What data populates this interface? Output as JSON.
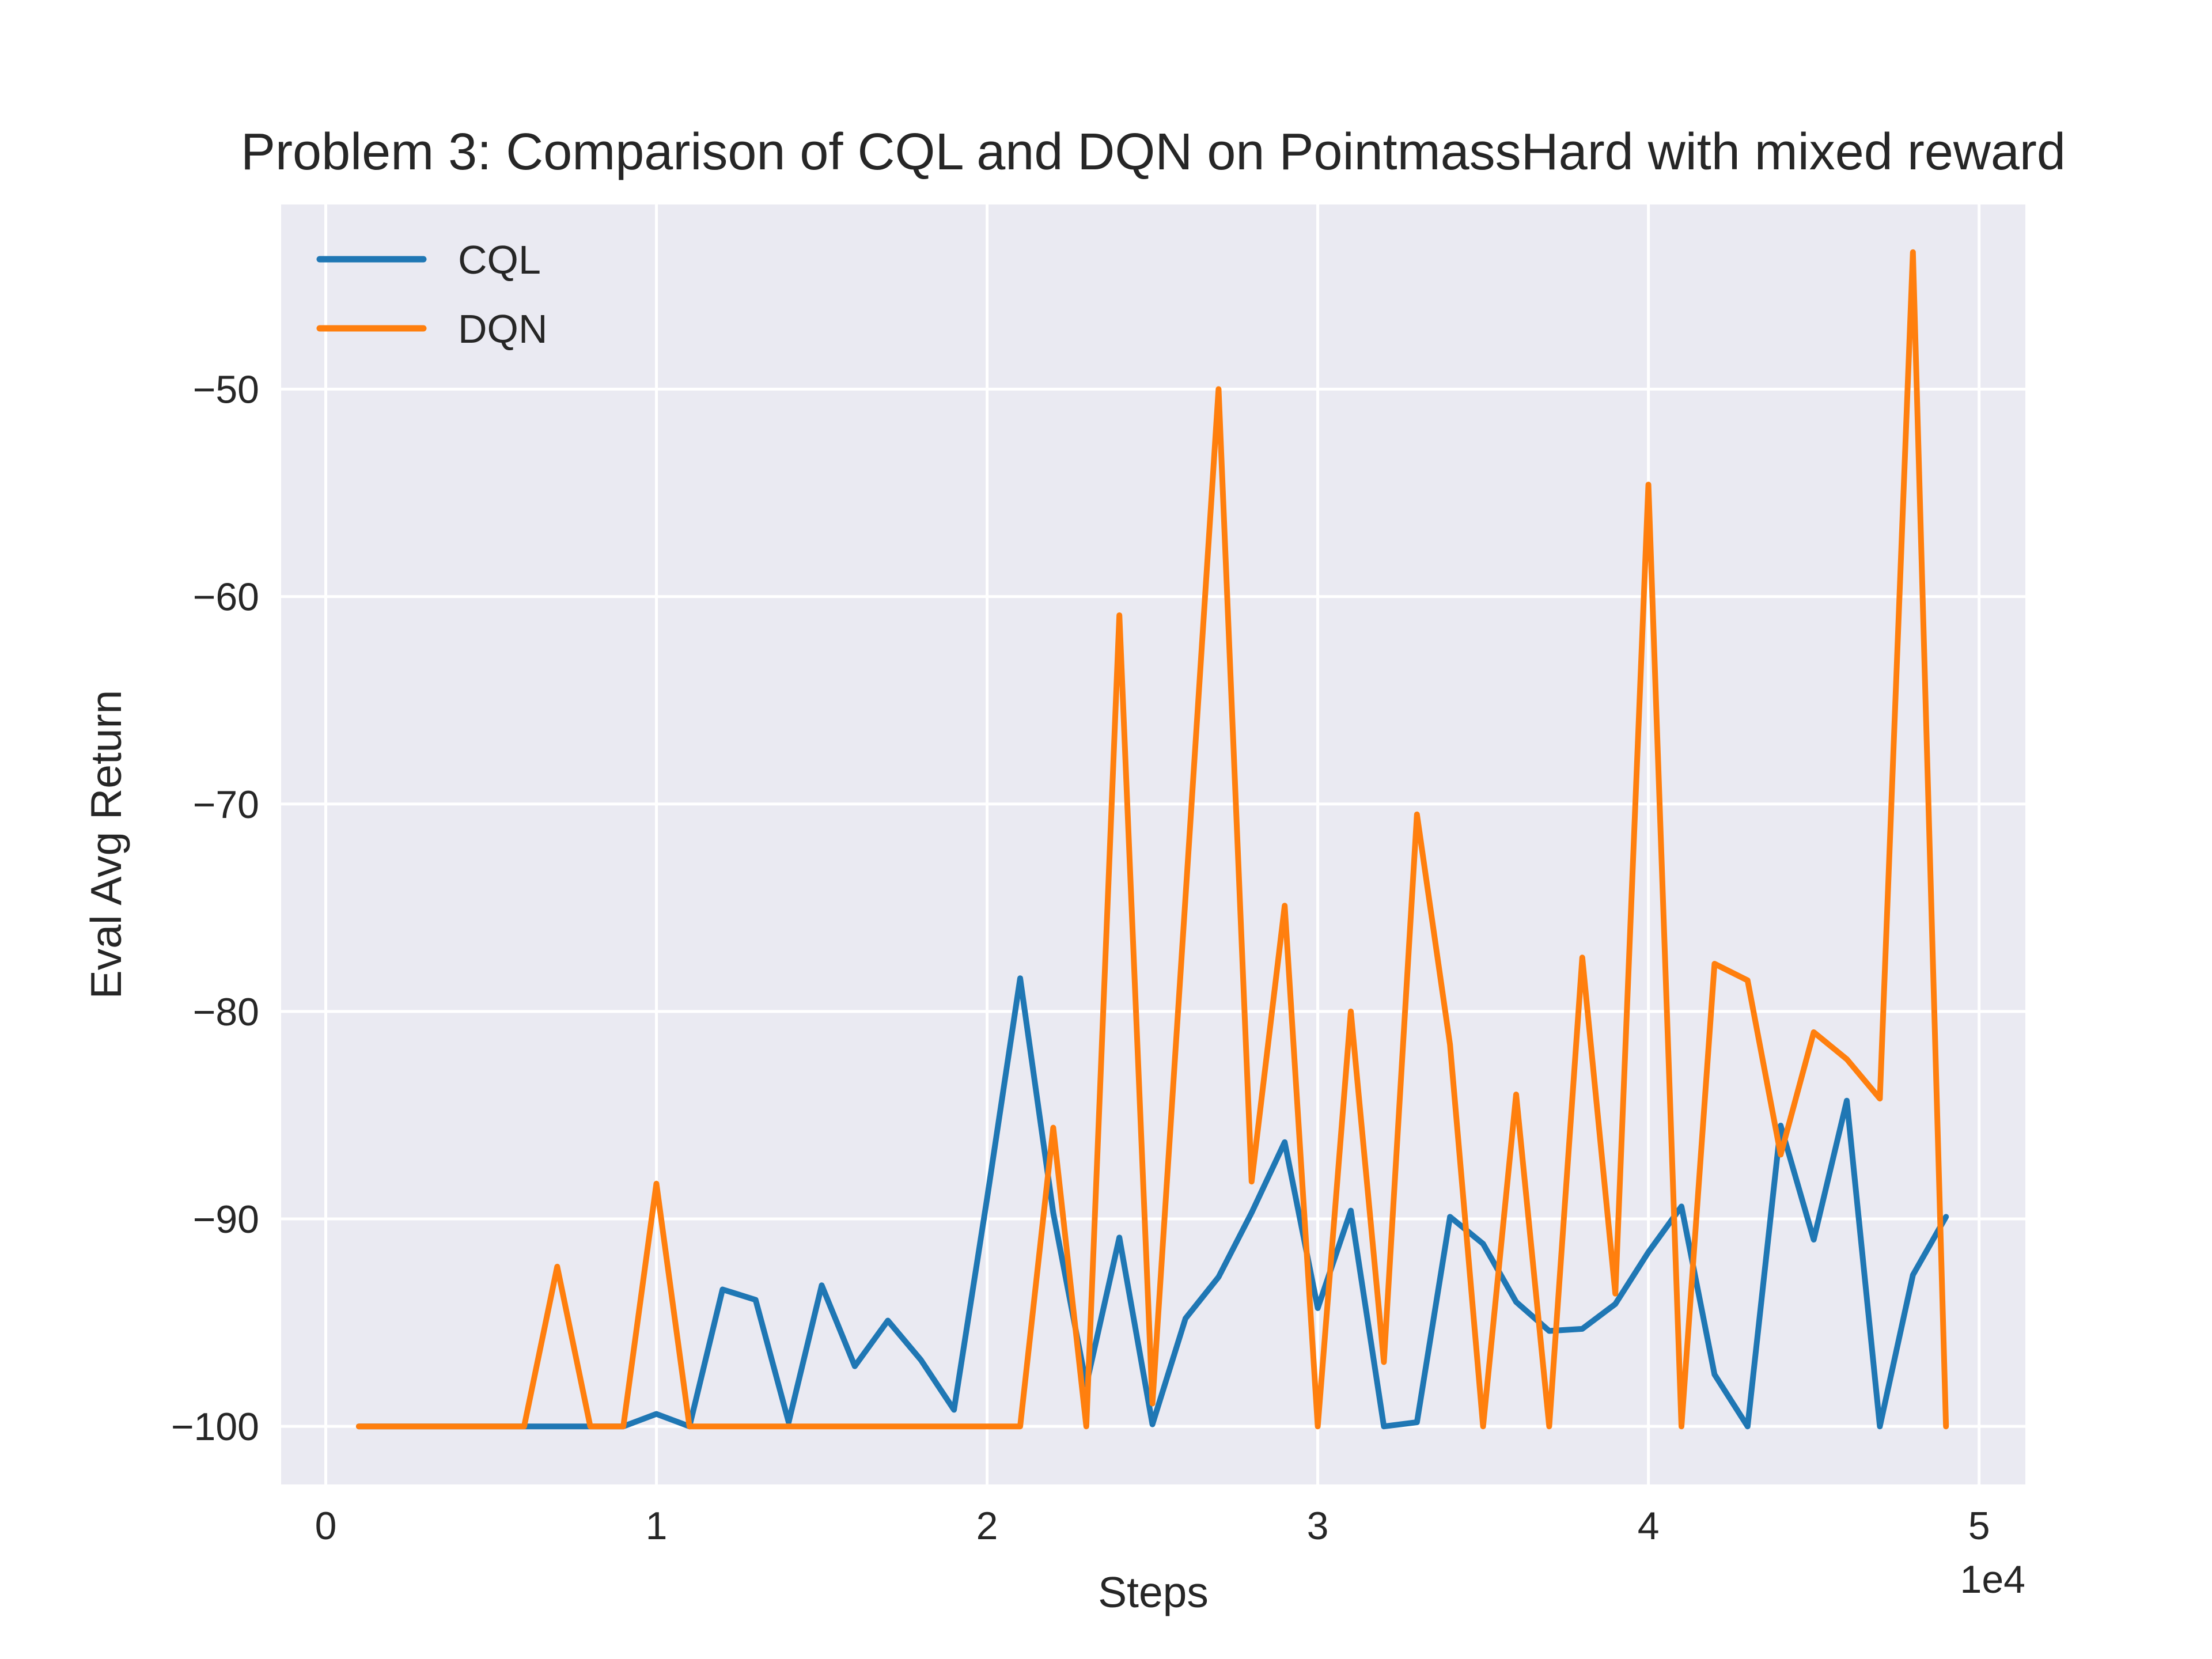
{
  "chart_data": {
    "type": "line",
    "title": "Problem 3: Comparison of CQL and DQN on PointmassHard with mixed reward",
    "xlabel": "Steps",
    "ylabel": "Eval Avg Return",
    "x_offset_label": "1e4",
    "xlim": [
      -1350,
      51400
    ],
    "ylim": [
      -102.8,
      -41.1
    ],
    "xticks": [
      0,
      10000,
      20000,
      30000,
      40000,
      50000
    ],
    "xtick_labels": [
      "0",
      "1",
      "2",
      "3",
      "4",
      "5"
    ],
    "yticks": [
      -100,
      -90,
      -80,
      -70,
      -60,
      -50
    ],
    "ytick_labels": [
      "−100",
      "−90",
      "−80",
      "−70",
      "−60",
      "−50"
    ],
    "grid": true,
    "legend_position": "top-left",
    "colors": {
      "background": "#eaeaf2",
      "grid": "#ffffff",
      "CQL": "#1f77b4",
      "DQN": "#ff7f0e"
    },
    "x": [
      1000,
      2000,
      3000,
      4000,
      5000,
      6000,
      7000,
      8000,
      9000,
      10000,
      11000,
      12000,
      13000,
      14000,
      15000,
      16000,
      17000,
      18000,
      19000,
      20000,
      21000,
      22000,
      23000,
      24000,
      25000,
      26000,
      27000,
      28000,
      29000,
      30000,
      31000,
      32000,
      33000,
      34000,
      35000,
      36000,
      37000,
      38000,
      39000,
      40000,
      41000,
      42000,
      43000,
      44000,
      45000,
      46000,
      47000,
      48000,
      49000
    ],
    "series": [
      {
        "name": "CQL",
        "values": [
          -100,
          -100,
          -100,
          -100,
          -100,
          -100,
          -100,
          -100,
          -100,
          -99.4,
          -100,
          -93.4,
          -93.9,
          -99.8,
          -93.2,
          -97.1,
          -94.9,
          -96.8,
          -99.2,
          -89.0,
          -78.4,
          -89.7,
          -98.0,
          -90.9,
          -99.9,
          -94.8,
          -92.8,
          -89.7,
          -86.3,
          -94.3,
          -89.6,
          -100,
          -99.8,
          -89.9,
          -91.2,
          -94.0,
          -95.4,
          -95.3,
          -94.1,
          -91.6,
          -89.4,
          -97.5,
          -100,
          -85.5,
          -91.0,
          -84.3,
          -100,
          -92.7,
          -89.9
        ]
      },
      {
        "name": "DQN",
        "values": [
          -100,
          -100,
          -100,
          -100,
          -100,
          -100,
          -92.3,
          -100,
          -100,
          -88.3,
          -100,
          -100,
          -100,
          -100,
          -100,
          -100,
          -100,
          -100,
          -100,
          -100,
          -100,
          -85.6,
          -100,
          -60.9,
          -98.9,
          -74.5,
          -50.0,
          -88.2,
          -74.9,
          -100,
          -80.0,
          -96.9,
          -70.5,
          -81.6,
          -100,
          -84.0,
          -100,
          -77.4,
          -93.6,
          -54.6,
          -100,
          -77.7,
          -78.5,
          -86.9,
          -81.0,
          -82.3,
          -84.2,
          -43.4,
          -100
        ]
      }
    ]
  }
}
